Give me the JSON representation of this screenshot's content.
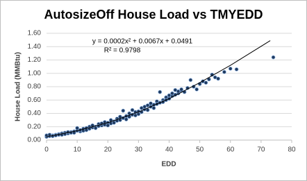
{
  "chart_data": {
    "type": "scatter",
    "title": "AutosizeOff House Load vs TMYEDD",
    "x_label": "EDD",
    "y_label": "House Load (MMBtu)",
    "annotations": [
      "y = 0.0002x² + 0.0067x + 0.0491",
      "R² = 0.9798"
    ],
    "color": "#1f3a5f",
    "x": [
      0,
      0,
      1,
      1,
      2,
      2,
      3,
      3,
      4,
      4,
      5,
      5,
      6,
      6,
      7,
      7,
      8,
      8,
      9,
      9,
      10,
      10,
      11,
      11,
      12,
      12,
      13,
      13,
      14,
      14,
      15,
      15,
      16,
      16,
      17,
      17,
      18,
      18,
      19,
      19,
      20,
      20,
      21,
      21,
      22,
      22,
      23,
      23,
      24,
      24,
      25,
      25,
      26,
      26,
      27,
      27,
      28,
      28,
      29,
      29,
      30,
      30,
      31,
      31,
      32,
      32,
      33,
      33,
      34,
      34,
      35,
      35,
      36,
      36,
      37,
      37,
      38,
      38,
      39,
      39,
      40,
      40,
      41,
      41,
      42,
      42,
      43,
      43,
      44,
      44,
      45,
      46,
      47,
      48,
      49,
      50,
      51,
      52,
      53,
      54,
      55,
      56,
      58,
      60,
      62,
      74
    ],
    "values": [
      0.05,
      0.07,
      0.06,
      0.08,
      0.07,
      0.06,
      0.08,
      0.07,
      0.09,
      0.08,
      0.1,
      0.08,
      0.11,
      0.09,
      0.1,
      0.12,
      0.12,
      0.11,
      0.13,
      0.11,
      0.14,
      0.18,
      0.13,
      0.15,
      0.17,
      0.14,
      0.18,
      0.15,
      0.2,
      0.17,
      0.19,
      0.22,
      0.2,
      0.18,
      0.24,
      0.21,
      0.22,
      0.25,
      0.23,
      0.27,
      0.26,
      0.22,
      0.25,
      0.3,
      0.28,
      0.26,
      0.32,
      0.29,
      0.3,
      0.35,
      0.44,
      0.33,
      0.36,
      0.31,
      0.4,
      0.35,
      0.38,
      0.45,
      0.42,
      0.37,
      0.43,
      0.39,
      0.48,
      0.42,
      0.46,
      0.5,
      0.52,
      0.45,
      0.5,
      0.55,
      0.53,
      0.48,
      0.58,
      0.54,
      0.72,
      0.56,
      0.6,
      0.57,
      0.64,
      0.6,
      0.62,
      0.67,
      0.66,
      0.7,
      0.75,
      0.68,
      0.7,
      0.73,
      0.74,
      0.76,
      0.72,
      0.78,
      0.9,
      0.8,
      0.76,
      0.84,
      0.88,
      0.86,
      0.91,
      0.98,
      0.94,
      0.92,
      1.02,
      1.07,
      1.06,
      1.24
    ],
    "trendline": {
      "color": "#000000",
      "x": [
        0,
        10,
        20,
        30,
        40,
        50,
        60,
        73
      ],
      "values": [
        0.05,
        0.14,
        0.26,
        0.42,
        0.62,
        0.86,
        1.12,
        1.49
      ]
    },
    "xlim": [
      0,
      80
    ],
    "xticks": [
      0,
      10,
      20,
      30,
      40,
      50,
      60,
      70,
      80
    ],
    "ylim": [
      0,
      1.6
    ],
    "yticks": [
      {
        "value": 0,
        "label": "0.00"
      },
      {
        "value": 0.2,
        "label": "0.20"
      },
      {
        "value": 0.4,
        "label": "0.40"
      },
      {
        "value": 0.6,
        "label": "0.60"
      },
      {
        "value": 0.8,
        "label": "0.80"
      },
      {
        "value": 1.0,
        "label": "1.00"
      },
      {
        "value": 1.2,
        "label": "1.20"
      },
      {
        "value": 1.4,
        "label": "1.40"
      },
      {
        "value": 1.6,
        "label": "1.60"
      }
    ],
    "grid": true
  }
}
